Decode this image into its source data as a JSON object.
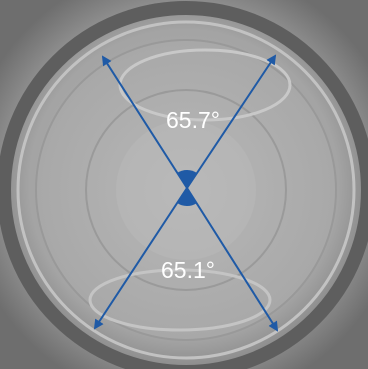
{
  "annotations": [
    {
      "label": "65.7°"
    },
    {
      "label": "65.1°"
    }
  ]
}
